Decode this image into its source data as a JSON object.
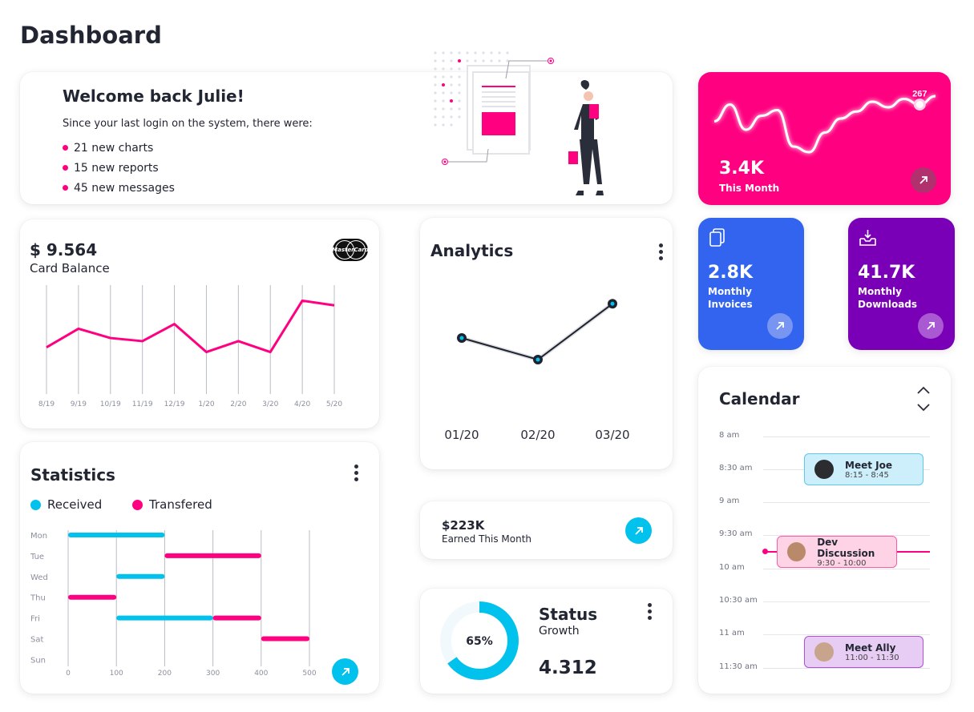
{
  "page": {
    "title": "Dashboard"
  },
  "welcome": {
    "heading": "Welcome back Julie!",
    "intro": "Since your last login on the system, there were:",
    "items": [
      "21 new charts",
      "15 new reports",
      "45 new messages"
    ]
  },
  "month_card": {
    "value": "3.4K",
    "label": "This Month",
    "peak_label": "267",
    "color": "#ff0080"
  },
  "invoices_card": {
    "value": "2.8K",
    "label_line1": "Monthly",
    "label_line2": "Invoices",
    "icon": "documents-icon",
    "color": "#3264f0"
  },
  "downloads_card": {
    "value": "41.7K",
    "label_line1": "Monthly",
    "label_line2": "Downloads",
    "icon": "inbox-download-icon",
    "color": "#7a00b8"
  },
  "balance_card": {
    "amount": "$ 9.564",
    "label": "Card Balance",
    "card_logo": "MasterCard"
  },
  "analytics": {
    "title": "Analytics"
  },
  "earned": {
    "value": "$223K",
    "label": "Earned This Month"
  },
  "statistics": {
    "title": "Statistics",
    "legend": [
      {
        "name": "Received",
        "color": "#00c2ec"
      },
      {
        "name": "Transfered",
        "color": "#ff0080"
      }
    ]
  },
  "status": {
    "title": "Status",
    "subtitle": "Growth",
    "percent": 65,
    "percent_label": "65%",
    "value": "4.312"
  },
  "calendar": {
    "title": "Calendar",
    "times": [
      "8 am",
      "8:30 am",
      "9 am",
      "9:30 am",
      "10 am",
      "10:30 am",
      "11 am",
      "11:30 am"
    ],
    "events": [
      {
        "title": "Meet Joe",
        "time": "8:15 - 8:45"
      },
      {
        "title": "Dev Discussion",
        "time": "9:30 - 10:00"
      },
      {
        "title": "Meet Ally",
        "time": "11:00 - 11:30"
      }
    ]
  },
  "chart_data": [
    {
      "type": "line",
      "categories": [
        "8/19",
        "9/19",
        "10/19",
        "11/19",
        "12/19",
        "1/20",
        "2/20",
        "3/20",
        "4/20",
        "5/20"
      ],
      "series": [
        {
          "values": [
            30,
            42,
            36,
            34,
            45,
            27,
            34,
            27,
            60,
            57
          ]
        }
      ],
      "ylim": [
        0,
        70
      ],
      "grid": "vertical",
      "color": "#ff0080"
    },
    {
      "type": "line",
      "categories": [
        "01/20",
        "02/20",
        "03/20"
      ],
      "series": [
        {
          "values": [
            40,
            28,
            59
          ]
        }
      ],
      "ylim": [
        0,
        80
      ],
      "grid": "off",
      "color": "#1f2330"
    },
    {
      "type": "bar",
      "orientation": "horizontal-range",
      "categories": [
        "Mon",
        "Tue",
        "Wed",
        "Thu",
        "Fri",
        "Sat",
        "Sun"
      ],
      "x_ticks": [
        "0",
        "100",
        "200",
        "300",
        "400",
        "500"
      ],
      "xlim": [
        0,
        500
      ],
      "series": [
        {
          "name": "Received",
          "color": "#00c2ec",
          "ranges": [
            [
              0,
              200
            ],
            null,
            [
              100,
              200
            ],
            null,
            [
              100,
              300
            ],
            null,
            null
          ]
        },
        {
          "name": "Transfered",
          "color": "#ff0080",
          "ranges": [
            null,
            [
              200,
              400
            ],
            null,
            [
              0,
              100
            ],
            [
              300,
              400
            ],
            [
              400,
              500
            ],
            null
          ]
        }
      ]
    },
    {
      "type": "line",
      "series": [
        {
          "values": [
            48,
            60,
            42,
            52,
            56,
            30,
            26,
            40,
            50,
            55,
            62,
            58,
            64,
            60,
            66
          ]
        }
      ],
      "peak_index": 13,
      "peak_value": 267,
      "grid": "off",
      "color": "#ffffff"
    }
  ]
}
